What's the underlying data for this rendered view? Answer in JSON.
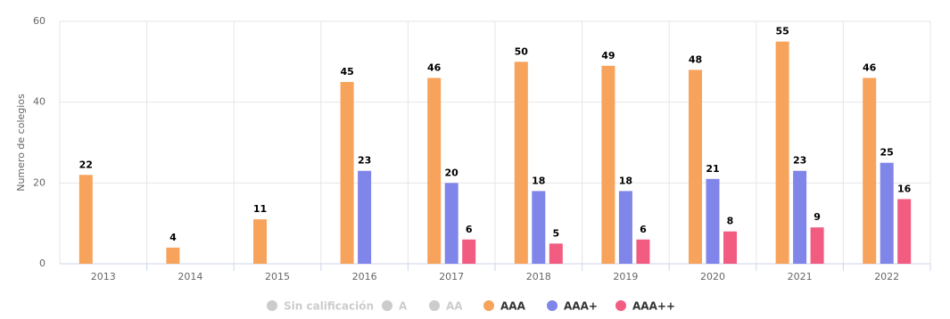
{
  "chart_data": {
    "type": "bar",
    "y_label": "Numero de colegios",
    "categories": [
      "2013",
      "2014",
      "2015",
      "2016",
      "2017",
      "2018",
      "2019",
      "2020",
      "2021",
      "2022"
    ],
    "series": [
      {
        "name": "Sin calificación",
        "color": "#cccccc",
        "visible": false,
        "values": [
          null,
          null,
          null,
          null,
          null,
          null,
          null,
          null,
          null,
          null
        ]
      },
      {
        "name": "A",
        "color": "#cccccc",
        "visible": false,
        "values": [
          null,
          null,
          null,
          null,
          null,
          null,
          null,
          null,
          null,
          null
        ]
      },
      {
        "name": "AA",
        "color": "#cccccc",
        "visible": false,
        "values": [
          null,
          null,
          null,
          null,
          null,
          null,
          null,
          null,
          null,
          null
        ]
      },
      {
        "name": "AAA",
        "color": "#f7a35c",
        "visible": true,
        "values": [
          22,
          4,
          11,
          45,
          46,
          50,
          49,
          48,
          55,
          46
        ]
      },
      {
        "name": "AAA+",
        "color": "#8085e9",
        "visible": true,
        "values": [
          null,
          null,
          null,
          23,
          20,
          18,
          18,
          21,
          23,
          25
        ]
      },
      {
        "name": "AAA++",
        "color": "#f15c80",
        "visible": true,
        "values": [
          null,
          null,
          null,
          null,
          6,
          5,
          6,
          8,
          9,
          16
        ]
      }
    ],
    "ylim": [
      0,
      60
    ],
    "yticks": [
      0,
      20,
      40,
      60
    ],
    "grid": true
  }
}
